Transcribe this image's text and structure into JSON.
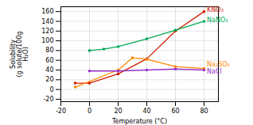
{
  "chart_data": {
    "type": "line",
    "xlabel": "Temperature (°C)",
    "ylabel": "Solubility\n(g solute/100g\nH₂O)",
    "xlim": [
      -20,
      90
    ],
    "ylim": [
      -25,
      170
    ],
    "xticks": [
      -20,
      0,
      20,
      40,
      60,
      80
    ],
    "yticks": [
      -20,
      0,
      20,
      40,
      60,
      80,
      100,
      120,
      140,
      160
    ],
    "grid": true,
    "marker": "circle",
    "line_style": "solid",
    "series": [
      {
        "name": "KNO₃",
        "color": "#cc2200",
        "x": [
          -10,
          0,
          20,
          40,
          60,
          80
        ],
        "values": [
          13,
          13,
          32,
          63,
          120,
          160
        ],
        "label_at": [
          82,
          163
        ]
      },
      {
        "name": "NaNO₃",
        "color": "#00aa55",
        "x": [
          0,
          10,
          20,
          40,
          60,
          80
        ],
        "values": [
          80,
          83,
          88,
          104,
          122,
          140
        ],
        "label_at": [
          82,
          142
        ]
      },
      {
        "name": "Na₂SO₄",
        "color": "#ff8800",
        "x": [
          -10,
          20,
          30,
          40,
          60,
          80
        ],
        "values": [
          5,
          40,
          65,
          62,
          47,
          43
        ],
        "label_at": [
          82,
          52
        ]
      },
      {
        "name": "NaCl",
        "color": "#9933cc",
        "x": [
          0,
          20,
          40,
          60,
          80
        ],
        "values": [
          38,
          38,
          40,
          42,
          40
        ],
        "label_at": [
          82,
          37
        ]
      }
    ]
  }
}
